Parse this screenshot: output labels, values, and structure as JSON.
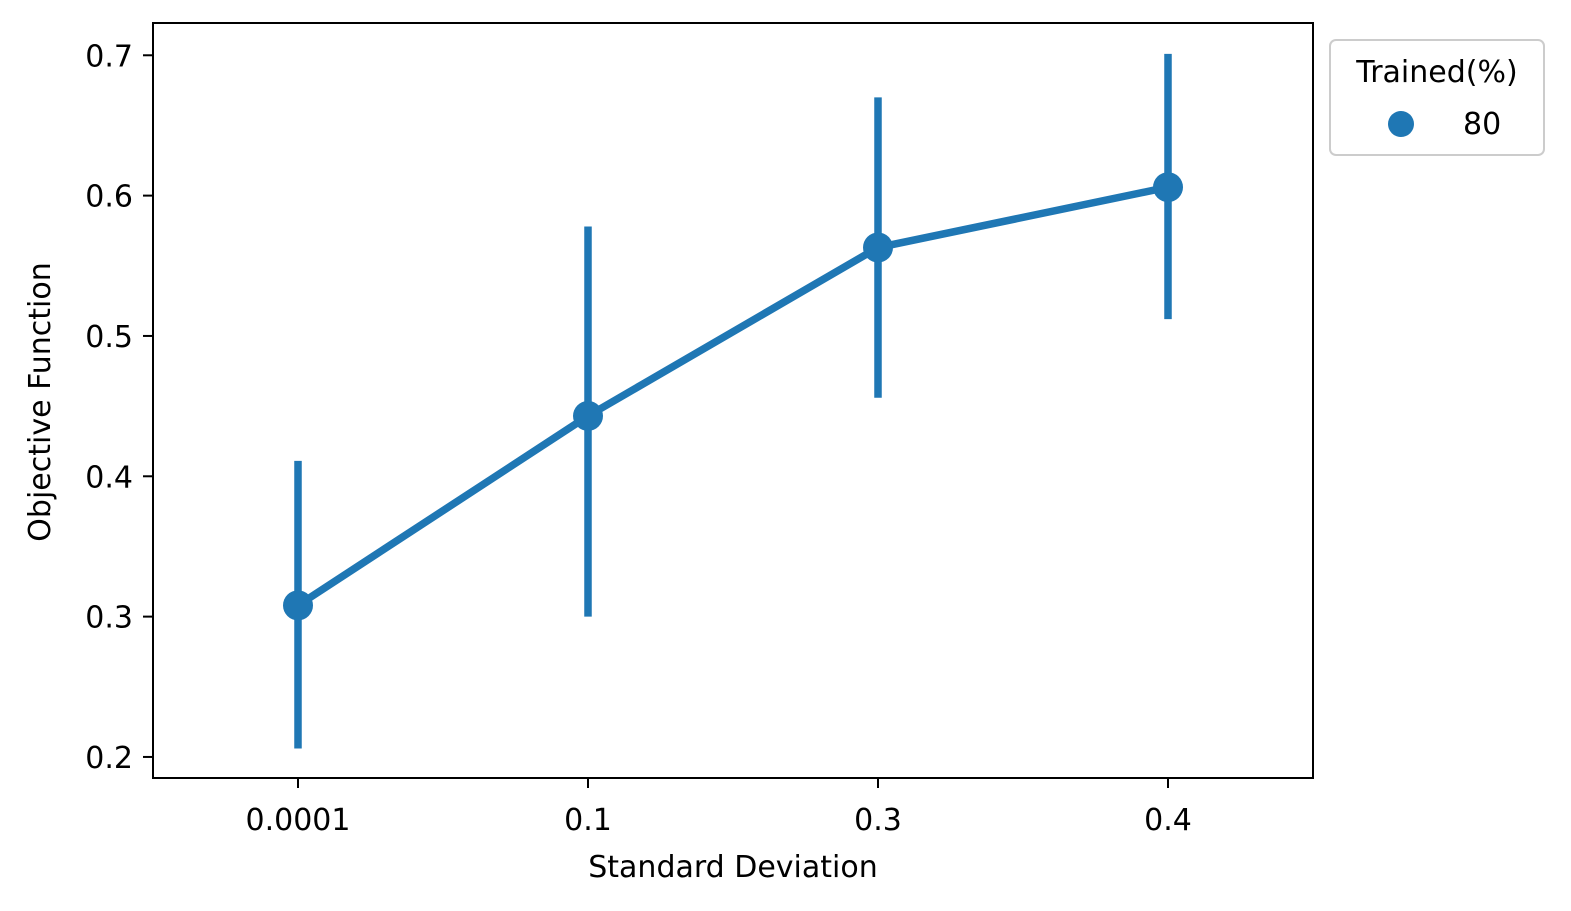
{
  "chart_data": {
    "type": "line",
    "title": "",
    "xlabel": "Standard Deviation",
    "ylabel": "Objective Function",
    "categories": [
      "0.0001",
      "0.1",
      "0.3",
      "0.4"
    ],
    "ylim": [
      0.185,
      0.723
    ],
    "yticks": [
      0.2,
      0.3,
      0.4,
      0.5,
      0.6,
      0.7
    ],
    "ytick_labels": [
      "0.2",
      "0.3",
      "0.4",
      "0.5",
      "0.6",
      "0.7"
    ],
    "grid": false,
    "legend": {
      "title": "Trained(%)",
      "placement": "outside-upper-right"
    },
    "series": [
      {
        "name": "80",
        "color": "#1f77b4",
        "values": [
          0.308,
          0.443,
          0.563,
          0.606
        ],
        "error_low": [
          0.206,
          0.3,
          0.456,
          0.512
        ],
        "error_high": [
          0.411,
          0.578,
          0.67,
          0.701
        ]
      }
    ]
  }
}
